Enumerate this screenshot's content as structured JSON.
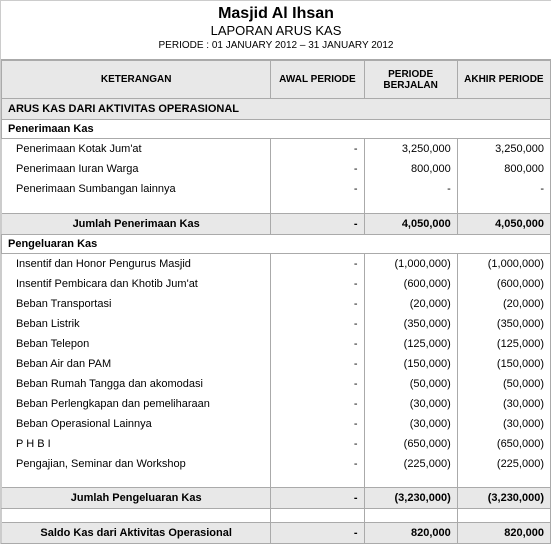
{
  "header": {
    "title": "Masjid Al Ihsan",
    "subtitle": "LAPORAN ARUS KAS",
    "period": "PERIODE : 01 JANUARY 2012 – 31 JANUARY 2012"
  },
  "columns": {
    "desc": "KETERANGAN",
    "c1": "AWAL PERIODE",
    "c2": "PERIODE BERJALAN",
    "c3": "AKHIR PERIODE"
  },
  "section1": "ARUS KAS DARI AKTIVITAS OPERASIONAL",
  "receipts_header": "Penerimaan Kas",
  "receipts": [
    {
      "desc": "Penerimaan Kotak Jum'at",
      "c1": "-",
      "c2": "3,250,000",
      "c3": "3,250,000"
    },
    {
      "desc": "Penerimaan Iuran Warga",
      "c1": "-",
      "c2": "800,000",
      "c3": "800,000"
    },
    {
      "desc": "Penerimaan Sumbangan lainnya",
      "c1": "-",
      "c2": "-",
      "c3": "-"
    }
  ],
  "receipts_total": {
    "desc": "Jumlah Penerimaan Kas",
    "c1": "-",
    "c2": "4,050,000",
    "c3": "4,050,000"
  },
  "expenses_header": "Pengeluaran Kas",
  "expenses": [
    {
      "desc": "Insentif dan Honor Pengurus Masjid",
      "c1": "-",
      "c2": "(1,000,000)",
      "c3": "(1,000,000)"
    },
    {
      "desc": "Insentif Pembicara dan Khotib Jum'at",
      "c1": "-",
      "c2": "(600,000)",
      "c3": "(600,000)"
    },
    {
      "desc": "Beban Transportasi",
      "c1": "-",
      "c2": "(20,000)",
      "c3": "(20,000)"
    },
    {
      "desc": "Beban Listrik",
      "c1": "-",
      "c2": "(350,000)",
      "c3": "(350,000)"
    },
    {
      "desc": "Beban Telepon",
      "c1": "-",
      "c2": "(125,000)",
      "c3": "(125,000)"
    },
    {
      "desc": "Beban Air dan PAM",
      "c1": "-",
      "c2": "(150,000)",
      "c3": "(150,000)"
    },
    {
      "desc": "Beban Rumah Tangga dan akomodasi",
      "c1": "-",
      "c2": "(50,000)",
      "c3": "(50,000)"
    },
    {
      "desc": "Beban Perlengkapan dan pemeliharaan",
      "c1": "-",
      "c2": "(30,000)",
      "c3": "(30,000)"
    },
    {
      "desc": "Beban Operasional Lainnya",
      "c1": "-",
      "c2": "(30,000)",
      "c3": "(30,000)"
    },
    {
      "desc": "P H B I",
      "c1": "-",
      "c2": "(650,000)",
      "c3": "(650,000)"
    },
    {
      "desc": "Pengajian, Seminar dan Workshop",
      "c1": "-",
      "c2": "(225,000)",
      "c3": "(225,000)"
    }
  ],
  "expenses_total": {
    "desc": "Jumlah Pengeluaran Kas",
    "c1": "-",
    "c2": "(3,230,000)",
    "c3": "(3,230,000)"
  },
  "balance": {
    "desc": "Saldo Kas dari Aktivitas Operasional",
    "c1": "-",
    "c2": "820,000",
    "c3": "820,000"
  }
}
